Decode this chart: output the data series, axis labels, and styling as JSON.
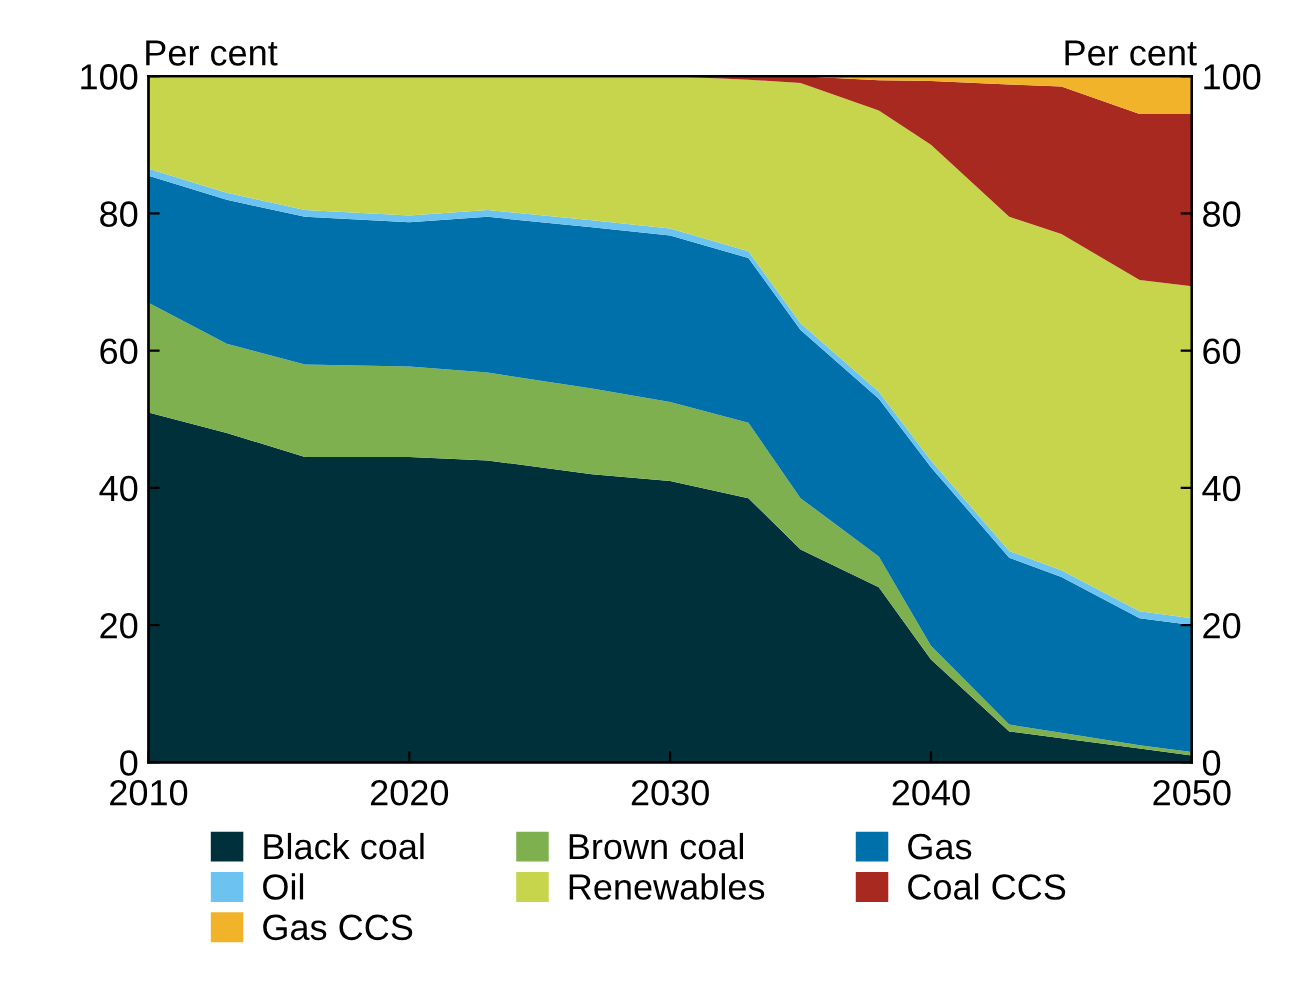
{
  "chart_data": {
    "type": "area",
    "stacked": true,
    "ylabel": "Per cent",
    "y2label": "Per cent",
    "x": [
      2010,
      2013,
      2016,
      2020,
      2023,
      2027,
      2030,
      2033,
      2035,
      2038,
      2040,
      2043,
      2045,
      2048,
      2050
    ],
    "xlim": [
      2010,
      2050
    ],
    "xticks": [
      2010,
      2020,
      2030,
      2040,
      2050
    ],
    "ylim": [
      0,
      100
    ],
    "yticks": [
      0,
      20,
      40,
      60,
      80,
      100
    ],
    "y2lim": [
      0,
      100
    ],
    "y2ticks": [
      0,
      20,
      40,
      60,
      80,
      100
    ],
    "grid": false,
    "legend": "bottom",
    "series": [
      {
        "name": "Black coal",
        "color": "#00303a",
        "values": [
          51,
          48,
          44.5,
          44.5,
          44,
          42,
          41,
          38.5,
          31,
          25.5,
          15,
          4.5,
          3.5,
          2,
          1
        ]
      },
      {
        "name": "Brown coal",
        "color": "#7fb04f",
        "values": [
          16,
          13,
          13.5,
          13.2,
          12.8,
          12.5,
          11.5,
          11,
          7.5,
          4.5,
          2,
          1,
          0.8,
          0.5,
          0.5
        ]
      },
      {
        "name": "Gas",
        "color": "#0070ab",
        "values": [
          18.5,
          21,
          21.5,
          21,
          22.7,
          23.5,
          24.3,
          24,
          24.5,
          23,
          26,
          24.3,
          22.7,
          18.5,
          18.5
        ]
      },
      {
        "name": "Oil",
        "color": "#6cc3ef",
        "values": [
          1,
          1,
          1,
          1,
          1,
          1,
          1,
          1,
          1,
          1,
          1,
          1,
          1,
          1,
          1
        ]
      },
      {
        "name": "Renewables",
        "color": "#c6d54b",
        "values": [
          13.5,
          17,
          19.5,
          20.3,
          19.5,
          21,
          22.2,
          25,
          35,
          41,
          46,
          48.7,
          49,
          48.3,
          48.4
        ]
      },
      {
        "name": "Coal CCS",
        "color": "#a8291f",
        "values": [
          0,
          0,
          0,
          0,
          0,
          0,
          0,
          0.5,
          1,
          4.4,
          9.3,
          19.3,
          21.5,
          24.2,
          25.1
        ]
      },
      {
        "name": "Gas CCS",
        "color": "#f0b32a",
        "values": [
          0,
          0,
          0,
          0,
          0,
          0,
          0,
          0,
          0,
          0.6,
          0.7,
          1.2,
          1.5,
          5.5,
          5.5
        ]
      }
    ]
  }
}
